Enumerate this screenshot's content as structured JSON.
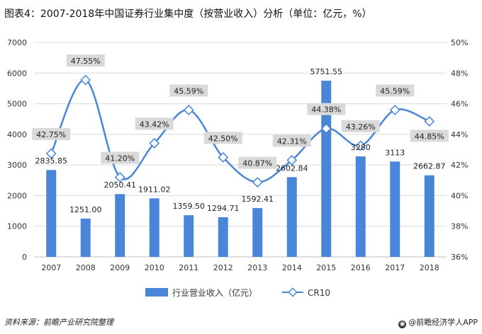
{
  "title": "图表4：2007-2018年中国证券行业集中度（按营业收入）分析（单位：亿元，%）",
  "source": "资料来源：前瞻产业研究院整理",
  "brand": "@前瞻经济学人APP",
  "colors": {
    "bar": "#4a86d8",
    "line": "#4a86d8",
    "marker_fill": "#ffffff",
    "label_box": "#d9d9d9",
    "grid": "#d9d9d9"
  },
  "chart_data": {
    "type": "bar+line",
    "categories": [
      "2007",
      "2008",
      "2009",
      "2010",
      "2011",
      "2012",
      "2013",
      "2014",
      "2015",
      "2016",
      "2017",
      "2018"
    ],
    "series": [
      {
        "name": "行业营业收入（亿元）",
        "type": "bar",
        "axis": "left",
        "values": [
          2835.85,
          1251.0,
          2050.41,
          1911.02,
          1359.5,
          1294.71,
          1592.41,
          2602.84,
          5751.55,
          3280,
          3113,
          2662.87
        ],
        "labels": [
          "2835.85",
          "1251.00",
          "2050.41",
          "1911.02",
          "1359.50",
          "1294.71",
          "1592.41",
          "2602.84",
          "5751.55",
          "3280",
          "3113",
          "2662.87"
        ]
      },
      {
        "name": "CR10",
        "type": "line",
        "axis": "right",
        "values": [
          42.75,
          47.55,
          41.2,
          43.42,
          45.59,
          42.5,
          40.87,
          42.31,
          44.38,
          43.26,
          45.59,
          44.85
        ],
        "labels": [
          "42.75%",
          "47.55%",
          "41.20%",
          "43.42%",
          "45.59%",
          "42.50%",
          "40.87%",
          "42.31%",
          "44.38%",
          "43.26%",
          "45.59%",
          "44.85%"
        ]
      }
    ],
    "y_left": {
      "ylim": [
        0,
        7000
      ],
      "ticks": [
        0,
        1000,
        2000,
        3000,
        4000,
        5000,
        6000,
        7000
      ],
      "tick_labels": [
        "0",
        "1000",
        "2000",
        "3000",
        "4000",
        "5000",
        "6000",
        "7000"
      ]
    },
    "y_right": {
      "ylim": [
        36,
        50
      ],
      "ticks": [
        36,
        38,
        40,
        42,
        44,
        46,
        48,
        50
      ],
      "tick_labels": [
        "36%",
        "38%",
        "40%",
        "42%",
        "44%",
        "46%",
        "48%",
        "50%"
      ]
    },
    "legend": {
      "position": "bottom",
      "entries": [
        "行业营业收入（亿元）",
        "CR10"
      ]
    }
  }
}
